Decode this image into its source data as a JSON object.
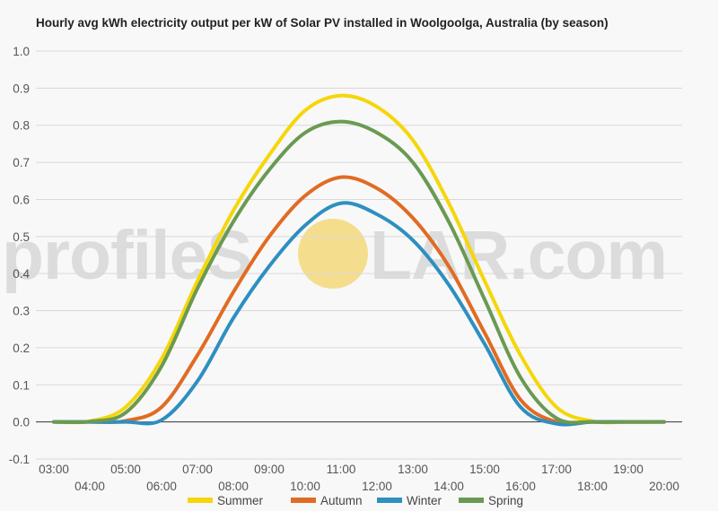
{
  "watermark": {
    "left_text": "profileS",
    "right_text": "LAR.com",
    "sun_color": "#f5dd8e"
  },
  "chart_data": {
    "type": "line",
    "title": "Hourly avg kWh electricity output per kW of Solar PV installed in Woolgoolga, Australia (by season)",
    "xlabel": "",
    "ylabel": "",
    "ylim": [
      -0.1,
      1.0
    ],
    "yticks": [
      -0.1,
      0.0,
      0.1,
      0.2,
      0.3,
      0.4,
      0.5,
      0.6,
      0.7,
      0.8,
      0.9,
      1.0
    ],
    "ytick_labels": [
      "-0.1",
      "0.0",
      "0.1",
      "0.2",
      "0.3",
      "0.4",
      "0.5",
      "0.6",
      "0.7",
      "0.8",
      "0.9",
      "1.0"
    ],
    "xticks": [
      3,
      4,
      5,
      6,
      7,
      8,
      9,
      10,
      11,
      12,
      13,
      14,
      15,
      16,
      17,
      18,
      19,
      20
    ],
    "xtick_labels": [
      "03:00",
      "04:00",
      "05:00",
      "06:00",
      "07:00",
      "08:00",
      "09:00",
      "10:00",
      "11:00",
      "12:00",
      "13:00",
      "14:00",
      "15:00",
      "16:00",
      "17:00",
      "18:00",
      "19:00",
      "20:00"
    ],
    "grid": true,
    "legend_position": "bottom",
    "x": [
      3,
      4,
      5,
      6,
      7,
      8,
      9,
      10,
      11,
      12,
      13,
      14,
      15,
      16,
      17,
      18,
      19,
      20
    ],
    "series": [
      {
        "name": "Summer",
        "color": "#f5d60a",
        "values": [
          0.0,
          0.002,
          0.04,
          0.17,
          0.38,
          0.57,
          0.72,
          0.84,
          0.88,
          0.85,
          0.76,
          0.59,
          0.38,
          0.18,
          0.04,
          0.002,
          0.0,
          0.0
        ]
      },
      {
        "name": "Autumn",
        "color": "#e06c23",
        "values": [
          0.0,
          0.0,
          0.003,
          0.04,
          0.18,
          0.35,
          0.5,
          0.61,
          0.66,
          0.63,
          0.55,
          0.42,
          0.24,
          0.06,
          0.0,
          0.0,
          0.0,
          0.0
        ]
      },
      {
        "name": "Winter",
        "color": "#2e8fc0",
        "values": [
          0.0,
          0.0,
          0.0,
          0.005,
          0.11,
          0.28,
          0.42,
          0.53,
          0.59,
          0.56,
          0.49,
          0.37,
          0.21,
          0.04,
          -0.005,
          0.0,
          0.0,
          0.0
        ]
      },
      {
        "name": "Spring",
        "color": "#6a9a52",
        "values": [
          0.0,
          0.001,
          0.025,
          0.15,
          0.36,
          0.54,
          0.68,
          0.78,
          0.81,
          0.78,
          0.7,
          0.54,
          0.33,
          0.12,
          0.01,
          0.0,
          0.0,
          0.0
        ]
      }
    ]
  }
}
